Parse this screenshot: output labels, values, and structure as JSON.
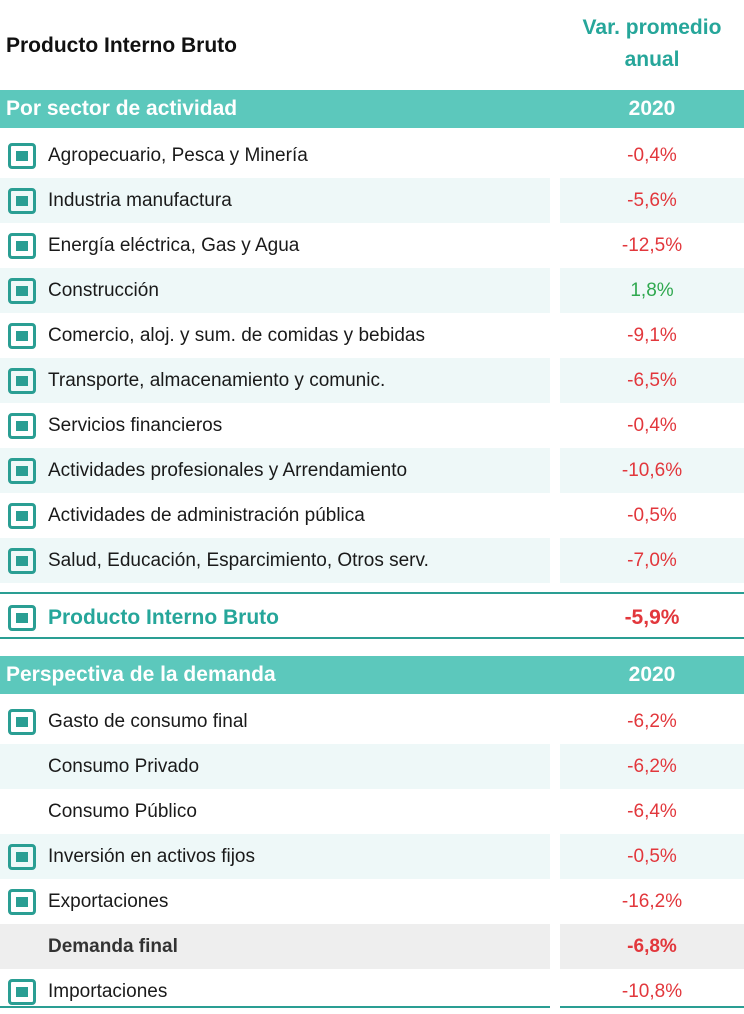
{
  "header": {
    "title": "Producto Interno Bruto",
    "column": "Var. promedio anual"
  },
  "sections": [
    {
      "title": "Por sector de actividad",
      "year": "2020",
      "rows": [
        {
          "label": "Agropecuario, Pesca y Minería",
          "value": "-0,4%"
        },
        {
          "label": "Industria manufactura",
          "value": "-5,6%"
        },
        {
          "label": "Energía eléctrica, Gas y Agua",
          "value": "-12,5%"
        },
        {
          "label": "Construcción",
          "value": "1,8%"
        },
        {
          "label": "Comercio,  aloj. y sum. de comidas y bebidas",
          "value": "-9,1%"
        },
        {
          "label": "Transporte, almacenamiento y comunic.",
          "value": "-6,5%"
        },
        {
          "label": "Servicios financieros",
          "value": "-0,4%"
        },
        {
          "label": "Actividades profesionales y Arrendamiento",
          "value": "-10,6%"
        },
        {
          "label": "Actividades de administración pública",
          "value": "-0,5%"
        },
        {
          "label": "Salud, Educación, Esparcimiento, Otros serv.",
          "value": "-7,0%"
        }
      ]
    },
    {
      "title": "Perspectiva de la demanda",
      "year": "2020",
      "rows": [
        {
          "label": "Gasto de consumo final",
          "value": "-6,2%"
        },
        {
          "label": "Consumo Privado",
          "value": "-6,2%"
        },
        {
          "label": "Consumo Público",
          "value": "-6,4%"
        },
        {
          "label": "Inversión en activos fijos",
          "value": "-0,5%"
        },
        {
          "label": "Exportaciones",
          "value": "-16,2%"
        },
        {
          "label": "Demanda final",
          "value": "-6,8%"
        },
        {
          "label": "Importaciones",
          "value": "-10,8%"
        }
      ]
    }
  ],
  "total": {
    "label": "Producto Interno Bruto",
    "value": "-5,9%"
  }
}
